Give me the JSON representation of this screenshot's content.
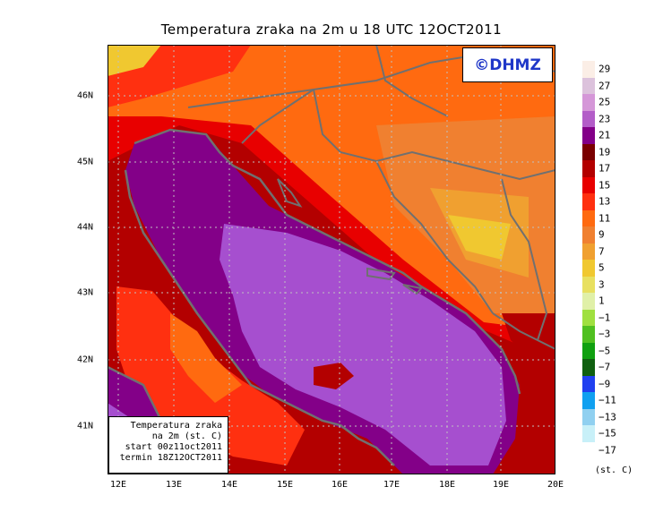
{
  "title": "Temperatura zraka na 2m u 18 UTC 12OCT2011",
  "logo": "©DHMZ",
  "info": {
    "line1": "Temperatura zraka",
    "line2": "na 2m (st. C)",
    "line3": "start 00z11oct2011",
    "line4": "termin 18Z12OCT2011"
  },
  "map": {
    "lon_labels": [
      "12E",
      "13E",
      "14E",
      "15E",
      "16E",
      "17E",
      "18E",
      "19E",
      "20E"
    ],
    "lat_labels": [
      "41N",
      "42N",
      "43N",
      "44N",
      "45N",
      "46N"
    ],
    "lon_range": [
      11.8,
      20.0
    ],
    "lat_range": [
      40.3,
      46.7
    ],
    "colors": {
      "sea": "#a64fcf",
      "warm_coast": "#800000",
      "land": "#f06020",
      "highland": "#e8b030",
      "border": "#707070"
    }
  },
  "legend": {
    "unit": "(st. C)",
    "labels": [
      "29",
      "27",
      "25",
      "23",
      "21",
      "19",
      "17",
      "15",
      "13",
      "11",
      "9",
      "7",
      "5",
      "3",
      "1",
      "−1",
      "−3",
      "−5",
      "−7",
      "−9",
      "−11",
      "−13",
      "−15",
      "−17"
    ],
    "colors": [
      "#fbeee6",
      "#dcc2dc",
      "#d597d8",
      "#b35dc8",
      "#830088",
      "#7a0000",
      "#b30000",
      "#e80000",
      "#ff3010",
      "#ff6a10",
      "#f08030",
      "#f0a030",
      "#f0c830",
      "#e8e060",
      "#e0f0a8",
      "#a0e040",
      "#50c020",
      "#10a010",
      "#106010",
      "#2040f0",
      "#10a0f0",
      "#90d0f0",
      "#c8f0f8",
      "#ffffff"
    ]
  }
}
